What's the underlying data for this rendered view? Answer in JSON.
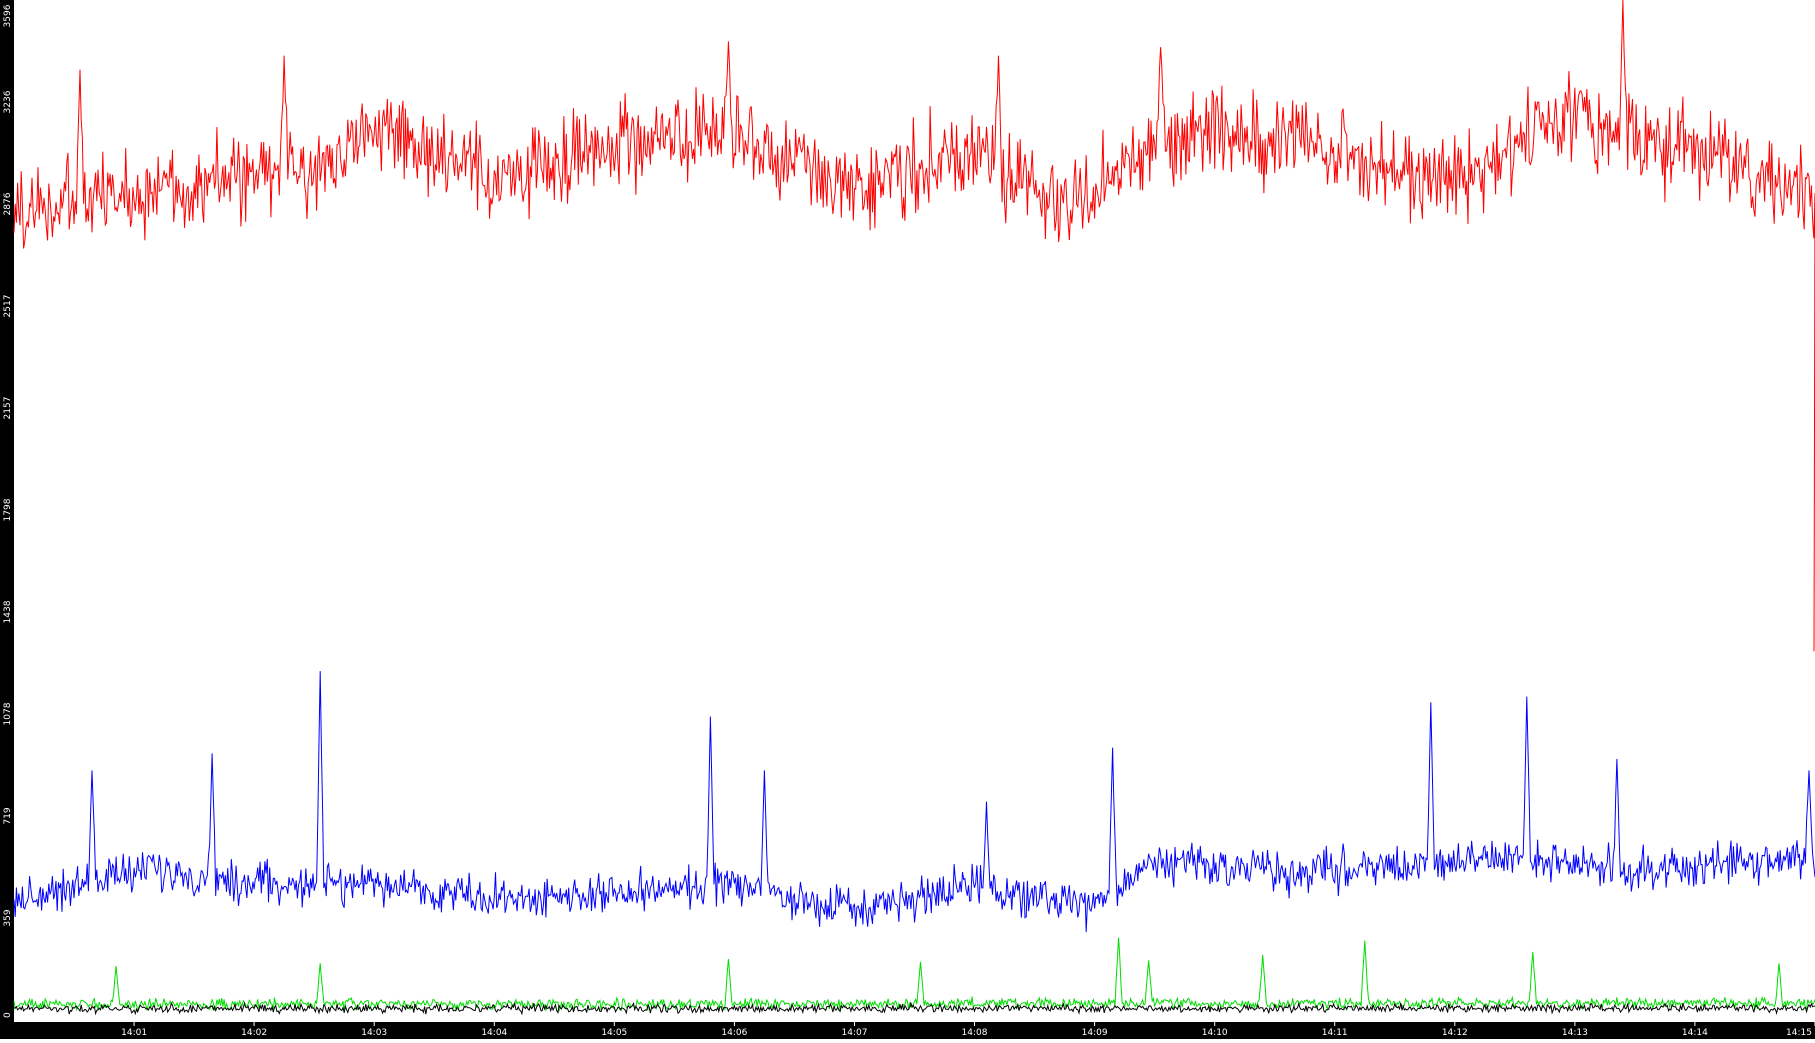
{
  "chart_data": {
    "type": "line",
    "y_tick_labels": [
      "0",
      "359",
      "719",
      "1078",
      "1438",
      "1798",
      "2157",
      "2517",
      "2876",
      "3236",
      "3596"
    ],
    "x_tick_labels": [
      "14:01",
      "14:02",
      "14:03",
      "14:04",
      "14:05",
      "14:06",
      "14:07",
      "14:08",
      "14:09",
      "14:10",
      "14:11",
      "14:12",
      "14:13",
      "14:14",
      "14:15"
    ],
    "ylim": [
      0,
      3596
    ],
    "xlim_minutes": [
      0,
      15
    ],
    "grid": false,
    "legend": "none",
    "colors": {
      "axis_bar": "#000000",
      "tick_text": "#ffffff",
      "background": "#ffffff"
    },
    "series": [
      {
        "color": "#ff0000",
        "base": 2960,
        "noise": 150,
        "anchors": [
          [
            0.0,
            2850
          ],
          [
            1.5,
            2950
          ],
          [
            2.5,
            3000
          ],
          [
            3.0,
            3150
          ],
          [
            4.0,
            2950
          ],
          [
            5.0,
            3100
          ],
          [
            6.0,
            3100
          ],
          [
            7.0,
            2950
          ],
          [
            8.0,
            3050
          ],
          [
            8.8,
            2850
          ],
          [
            9.5,
            3100
          ],
          [
            10.0,
            3150
          ],
          [
            11.0,
            3050
          ],
          [
            12.0,
            2950
          ],
          [
            13.0,
            3200
          ],
          [
            14.0,
            3050
          ],
          [
            15.0,
            2900
          ]
        ],
        "spikes": [
          [
            0.55,
            3350
          ],
          [
            2.25,
            3400
          ],
          [
            5.95,
            3450
          ],
          [
            8.2,
            3400
          ],
          [
            9.55,
            3430
          ],
          [
            13.4,
            3600
          ]
        ],
        "end_drop": 1300
      },
      {
        "color": "#0000ff",
        "base": 520,
        "noise": 70,
        "anchors": [
          [
            0.0,
            420
          ],
          [
            1.0,
            530
          ],
          [
            2.0,
            480
          ],
          [
            3.0,
            480
          ],
          [
            4.0,
            430
          ],
          [
            5.0,
            440
          ],
          [
            6.0,
            480
          ],
          [
            7.0,
            380
          ],
          [
            8.0,
            470
          ],
          [
            8.9,
            390
          ],
          [
            9.5,
            560
          ],
          [
            10.5,
            520
          ],
          [
            11.5,
            540
          ],
          [
            12.5,
            570
          ],
          [
            13.5,
            520
          ],
          [
            14.5,
            560
          ],
          [
            15.0,
            580
          ]
        ],
        "spikes": [
          [
            0.65,
            880
          ],
          [
            1.65,
            940
          ],
          [
            2.55,
            1230
          ],
          [
            5.8,
            1070
          ],
          [
            6.25,
            880
          ],
          [
            8.1,
            770
          ],
          [
            9.15,
            960
          ],
          [
            11.8,
            1120
          ],
          [
            12.6,
            1140
          ],
          [
            13.35,
            920
          ],
          [
            14.95,
            880
          ]
        ],
        "end_drop": 0
      },
      {
        "color": "#00dd00",
        "base": 55,
        "noise": 18,
        "anchors": [
          [
            0.0,
            55
          ],
          [
            15.0,
            60
          ]
        ],
        "spikes": [
          [
            0.85,
            190
          ],
          [
            2.55,
            200
          ],
          [
            5.95,
            215
          ],
          [
            7.55,
            205
          ],
          [
            9.2,
            290
          ],
          [
            9.45,
            210
          ],
          [
            10.4,
            230
          ],
          [
            11.25,
            280
          ],
          [
            12.65,
            240
          ],
          [
            14.7,
            200
          ]
        ],
        "end_drop": 0
      },
      {
        "color": "#000000",
        "base": 40,
        "noise": 14,
        "anchors": [
          [
            0.0,
            40
          ],
          [
            15.0,
            42
          ]
        ],
        "spikes": [],
        "end_drop": 0
      }
    ]
  }
}
